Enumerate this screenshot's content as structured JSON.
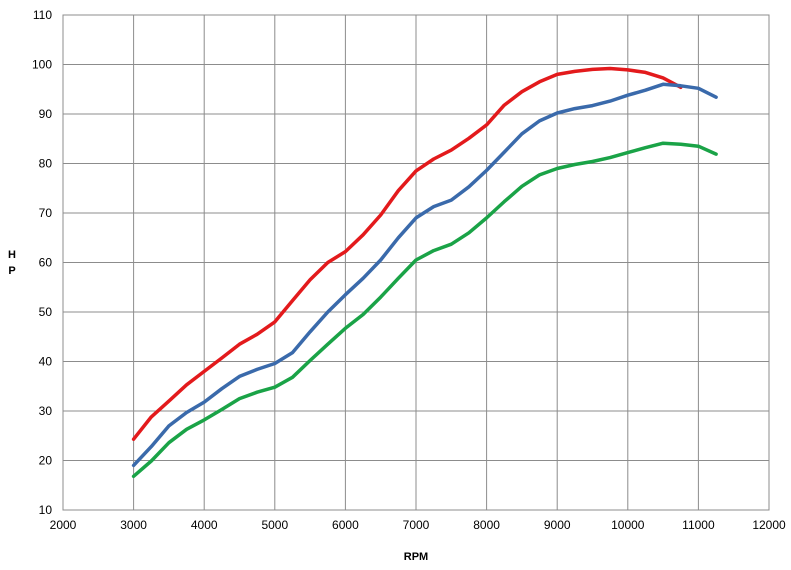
{
  "chart_data": {
    "type": "line",
    "title": "",
    "xlabel": "RPM",
    "ylabel": "H\nP",
    "ylabel_chars": [
      "H",
      "P"
    ],
    "xlim": [
      2000,
      12000
    ],
    "ylim": [
      10,
      110
    ],
    "xticks": [
      2000,
      3000,
      4000,
      5000,
      6000,
      7000,
      8000,
      9000,
      10000,
      11000,
      12000
    ],
    "yticks": [
      10,
      20,
      30,
      40,
      50,
      60,
      70,
      80,
      90,
      100,
      110
    ],
    "grid": true,
    "legend": "none",
    "series": [
      {
        "color": "#e31a1c",
        "points": [
          [
            3000,
            24.3
          ],
          [
            3250,
            28.8
          ],
          [
            3500,
            32
          ],
          [
            3750,
            35.3
          ],
          [
            4000,
            38
          ],
          [
            4250,
            40.7
          ],
          [
            4500,
            43.5
          ],
          [
            4750,
            45.5
          ],
          [
            5000,
            48
          ],
          [
            5250,
            52.3
          ],
          [
            5500,
            56.5
          ],
          [
            5750,
            60
          ],
          [
            6000,
            62.2
          ],
          [
            6250,
            65.6
          ],
          [
            6500,
            69.6
          ],
          [
            6750,
            74.5
          ],
          [
            7000,
            78.5
          ],
          [
            7250,
            80.9
          ],
          [
            7500,
            82.7
          ],
          [
            7750,
            85.1
          ],
          [
            8000,
            87.8
          ],
          [
            8250,
            91.8
          ],
          [
            8500,
            94.5
          ],
          [
            8750,
            96.5
          ],
          [
            9000,
            98
          ],
          [
            9250,
            98.6
          ],
          [
            9500,
            99
          ],
          [
            9750,
            99.2
          ],
          [
            10000,
            98.9
          ],
          [
            10250,
            98.4
          ],
          [
            10500,
            97.3
          ],
          [
            10750,
            95.4
          ]
        ]
      },
      {
        "color": "#3a6aab",
        "points": [
          [
            3000,
            19
          ],
          [
            3250,
            22.8
          ],
          [
            3500,
            27
          ],
          [
            3750,
            29.7
          ],
          [
            4000,
            31.8
          ],
          [
            4250,
            34.5
          ],
          [
            4500,
            37
          ],
          [
            4750,
            38.4
          ],
          [
            5000,
            39.6
          ],
          [
            5250,
            41.8
          ],
          [
            5500,
            46
          ],
          [
            5750,
            50
          ],
          [
            6000,
            53.5
          ],
          [
            6250,
            56.8
          ],
          [
            6500,
            60.5
          ],
          [
            6750,
            65
          ],
          [
            7000,
            69
          ],
          [
            7250,
            71.3
          ],
          [
            7500,
            72.6
          ],
          [
            7750,
            75.3
          ],
          [
            8000,
            78.6
          ],
          [
            8250,
            82.3
          ],
          [
            8500,
            86
          ],
          [
            8750,
            88.6
          ],
          [
            9000,
            90.2
          ],
          [
            9250,
            91.1
          ],
          [
            9500,
            91.7
          ],
          [
            9750,
            92.6
          ],
          [
            10000,
            93.8
          ],
          [
            10250,
            94.8
          ],
          [
            10500,
            96
          ],
          [
            10750,
            95.7
          ],
          [
            11000,
            95.2
          ],
          [
            11250,
            93.4
          ]
        ]
      },
      {
        "color": "#1aa347",
        "points": [
          [
            3000,
            16.8
          ],
          [
            3250,
            19.9
          ],
          [
            3500,
            23.6
          ],
          [
            3750,
            26.3
          ],
          [
            4000,
            28.2
          ],
          [
            4250,
            30.3
          ],
          [
            4500,
            32.5
          ],
          [
            4750,
            33.8
          ],
          [
            5000,
            34.8
          ],
          [
            5250,
            36.8
          ],
          [
            5500,
            40.2
          ],
          [
            5750,
            43.5
          ],
          [
            6000,
            46.7
          ],
          [
            6250,
            49.5
          ],
          [
            6500,
            53
          ],
          [
            6750,
            56.8
          ],
          [
            7000,
            60.5
          ],
          [
            7250,
            62.4
          ],
          [
            7500,
            63.7
          ],
          [
            7750,
            66
          ],
          [
            8000,
            69
          ],
          [
            8250,
            72.3
          ],
          [
            8500,
            75.4
          ],
          [
            8750,
            77.7
          ],
          [
            9000,
            79
          ],
          [
            9250,
            79.8
          ],
          [
            9500,
            80.4
          ],
          [
            9750,
            81.2
          ],
          [
            10000,
            82.2
          ],
          [
            10250,
            83.2
          ],
          [
            10500,
            84.1
          ],
          [
            10750,
            83.9
          ],
          [
            11000,
            83.5
          ],
          [
            11250,
            81.9
          ]
        ]
      }
    ]
  }
}
